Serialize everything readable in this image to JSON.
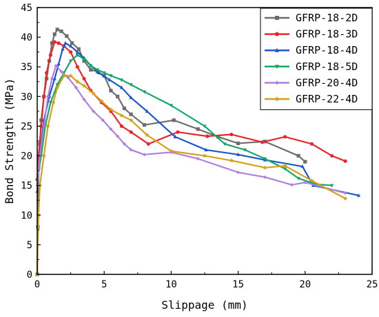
{
  "chart_data": {
    "type": "line",
    "title": "",
    "xlabel": "Slippage (mm)",
    "ylabel": "Bond Strength (MPa)",
    "xlim": [
      0,
      25
    ],
    "ylim": [
      0,
      45
    ],
    "xticks": [
      0,
      5,
      10,
      15,
      20,
      25
    ],
    "yticks": [
      0,
      5,
      10,
      15,
      20,
      25,
      30,
      35,
      40,
      45
    ],
    "grid": false,
    "legend_position": "top-right",
    "series": [
      {
        "name": "GFRP-18-2D",
        "color": "#6d6d6d",
        "marker": "square",
        "points": [
          [
            0,
            0
          ],
          [
            0.05,
            8
          ],
          [
            0.1,
            18
          ],
          [
            0.2,
            22
          ],
          [
            0.3,
            26
          ],
          [
            0.5,
            30
          ],
          [
            0.7,
            33
          ],
          [
            0.9,
            36
          ],
          [
            1.1,
            39
          ],
          [
            1.3,
            40.5
          ],
          [
            1.5,
            41.3
          ],
          [
            1.8,
            41
          ],
          [
            2.2,
            40.2
          ],
          [
            2.6,
            39
          ],
          [
            3.1,
            38
          ],
          [
            3.5,
            36
          ],
          [
            4.0,
            34.5
          ],
          [
            4.5,
            34.2
          ],
          [
            5.0,
            33.5
          ],
          [
            5.5,
            31
          ],
          [
            6.0,
            30
          ],
          [
            6.5,
            28
          ],
          [
            7.0,
            27
          ],
          [
            8.0,
            25.2
          ],
          [
            10.2,
            26
          ],
          [
            12.0,
            24.5
          ],
          [
            13.5,
            23.2
          ],
          [
            15.0,
            22.1
          ],
          [
            17.0,
            22.4
          ],
          [
            19.5,
            20
          ],
          [
            20.0,
            19
          ]
        ]
      },
      {
        "name": "GFRP-18-3D",
        "color": "#e8262c",
        "marker": "circle",
        "points": [
          [
            0,
            16
          ],
          [
            0.1,
            20
          ],
          [
            0.3,
            25
          ],
          [
            0.5,
            30
          ],
          [
            0.7,
            34
          ],
          [
            1.0,
            37
          ],
          [
            1.3,
            39.2
          ],
          [
            1.6,
            39
          ],
          [
            2.0,
            38.5
          ],
          [
            2.5,
            37.5
          ],
          [
            3.0,
            35
          ],
          [
            3.5,
            33
          ],
          [
            4.0,
            31
          ],
          [
            4.8,
            29
          ],
          [
            5.5,
            27.5
          ],
          [
            6.3,
            25
          ],
          [
            7.0,
            24
          ],
          [
            8.3,
            22
          ],
          [
            10.5,
            24
          ],
          [
            12.7,
            23.3
          ],
          [
            14.5,
            23.6
          ],
          [
            16.8,
            22.3
          ],
          [
            18.5,
            23.2
          ],
          [
            20.5,
            22
          ],
          [
            22.0,
            20
          ],
          [
            23.0,
            19.1
          ]
        ]
      },
      {
        "name": "GFRP-18-4D",
        "color": "#1b57c9",
        "marker": "triangle",
        "points": [
          [
            0,
            14
          ],
          [
            0.2,
            20
          ],
          [
            0.5,
            26
          ],
          [
            0.9,
            30
          ],
          [
            1.3,
            33
          ],
          [
            1.6,
            35.5
          ],
          [
            1.9,
            38
          ],
          [
            2.1,
            39
          ],
          [
            2.5,
            38.5
          ],
          [
            3.0,
            37.5
          ],
          [
            3.5,
            36.5
          ],
          [
            4.0,
            35.2
          ],
          [
            4.6,
            34
          ],
          [
            5.4,
            32.8
          ],
          [
            6.3,
            31.5
          ],
          [
            7.0,
            29.8
          ],
          [
            8.2,
            27.5
          ],
          [
            10.3,
            23.2
          ],
          [
            12.6,
            21
          ],
          [
            15.0,
            20.2
          ],
          [
            17.0,
            19.3
          ],
          [
            19.8,
            18.2
          ],
          [
            20.6,
            15
          ],
          [
            24.0,
            13.3
          ]
        ]
      },
      {
        "name": "GFRP-18-5D",
        "color": "#13a86a",
        "marker": "triangle-down",
        "points": [
          [
            0,
            16
          ],
          [
            0.3,
            20
          ],
          [
            0.6,
            25
          ],
          [
            1.0,
            29
          ],
          [
            1.5,
            32
          ],
          [
            2.0,
            34
          ],
          [
            2.5,
            36
          ],
          [
            3.0,
            37
          ],
          [
            3.5,
            36.3
          ],
          [
            4.0,
            35.2
          ],
          [
            4.5,
            34.5
          ],
          [
            5.0,
            34
          ],
          [
            5.5,
            33.5
          ],
          [
            6.3,
            32.8
          ],
          [
            7.0,
            32
          ],
          [
            8.0,
            30.8
          ],
          [
            10.0,
            28.5
          ],
          [
            12.5,
            25
          ],
          [
            14.0,
            22
          ],
          [
            15.5,
            21
          ],
          [
            17.0,
            19.5
          ],
          [
            18.5,
            17.8
          ],
          [
            19.5,
            16.2
          ],
          [
            20.8,
            15.2
          ],
          [
            22.0,
            15
          ]
        ]
      },
      {
        "name": "GFRP-20-4D",
        "color": "#b07fe0",
        "marker": "diamond",
        "points": [
          [
            0,
            15
          ],
          [
            0.2,
            20
          ],
          [
            0.5,
            25
          ],
          [
            0.8,
            30
          ],
          [
            1.1,
            33
          ],
          [
            1.4,
            35.2
          ],
          [
            1.8,
            34.2
          ],
          [
            2.3,
            33.2
          ],
          [
            2.9,
            31.5
          ],
          [
            3.5,
            29.5
          ],
          [
            4.2,
            27.5
          ],
          [
            4.9,
            26
          ],
          [
            5.5,
            24.5
          ],
          [
            6.0,
            23.3
          ],
          [
            6.5,
            22
          ],
          [
            7.0,
            21
          ],
          [
            8.0,
            20.2
          ],
          [
            10.0,
            20.6
          ],
          [
            12.0,
            19.5
          ],
          [
            15.0,
            17.2
          ],
          [
            17.0,
            16.4
          ],
          [
            19.0,
            15.1
          ],
          [
            20.0,
            15.5
          ],
          [
            23.0,
            13.7
          ]
        ]
      },
      {
        "name": "GFRP-22-4D",
        "color": "#d4a017",
        "marker": "star",
        "points": [
          [
            0,
            0
          ],
          [
            0.1,
            10
          ],
          [
            0.2,
            15
          ],
          [
            0.5,
            20
          ],
          [
            0.8,
            25
          ],
          [
            1.2,
            29
          ],
          [
            1.5,
            31.5
          ],
          [
            2.0,
            33.5
          ],
          [
            2.5,
            33.5
          ],
          [
            3.0,
            32.5
          ],
          [
            3.5,
            31.8
          ],
          [
            4.2,
            30.5
          ],
          [
            4.8,
            29.2
          ],
          [
            5.5,
            27.8
          ],
          [
            6.3,
            26.8
          ],
          [
            7.0,
            26
          ],
          [
            8.2,
            23.5
          ],
          [
            10.0,
            20.8
          ],
          [
            12.5,
            20
          ],
          [
            14.5,
            19.2
          ],
          [
            17.0,
            18
          ],
          [
            18.5,
            18.3
          ],
          [
            20.5,
            15.8
          ],
          [
            23.0,
            12.8
          ]
        ]
      }
    ]
  }
}
